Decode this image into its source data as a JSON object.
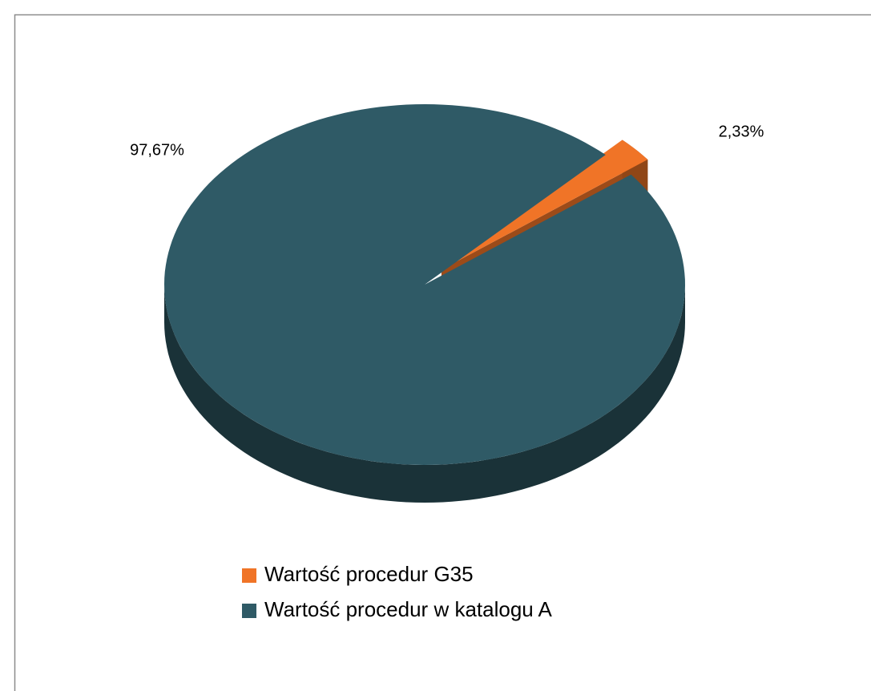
{
  "chart_data": {
    "type": "pie",
    "three_d": true,
    "categories": [
      "Wartość procedur G35",
      "Wartość procedur w katalogu A"
    ],
    "values": [
      2.33,
      97.67
    ],
    "value_labels": [
      "2,33%",
      "97,67%"
    ],
    "colors": [
      "#f07427",
      "#2f5a66"
    ],
    "legend": "bottom"
  }
}
